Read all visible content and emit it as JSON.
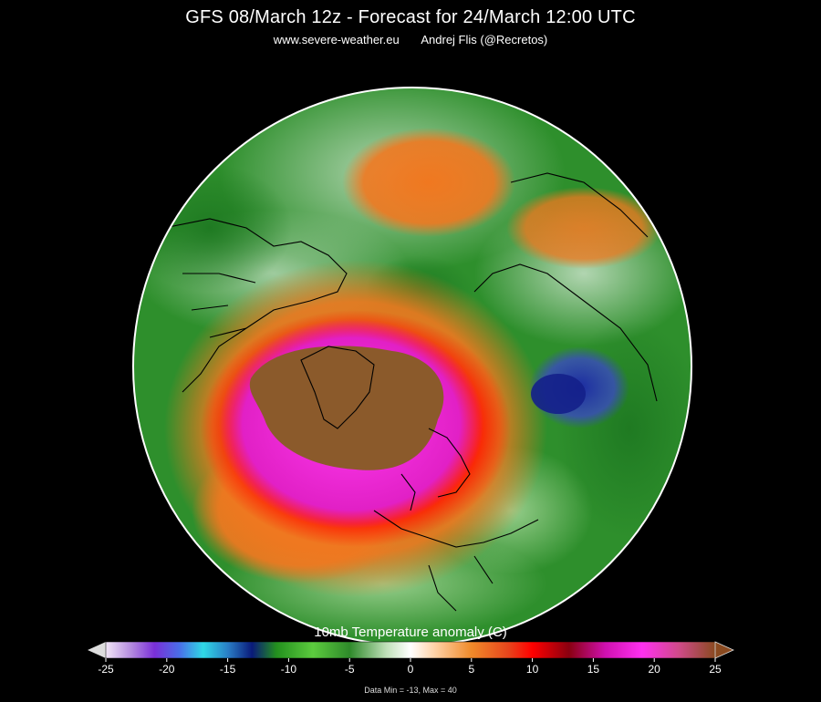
{
  "header": {
    "title": "GFS 08/March 12z  -  Forecast for 24/March 12:00 UTC",
    "site": "www.severe-weather.eu",
    "author": "Andrej Flis (@Recretos)"
  },
  "colorbar": {
    "title": "10mb Temperature anomaly (C)",
    "min": -25,
    "max": 25,
    "ticks": [
      "-25",
      "-20",
      "-15",
      "-10",
      "-5",
      "0",
      "5",
      "10",
      "15",
      "20",
      "25"
    ],
    "stops": [
      {
        "v": -25,
        "c": "#f2e6f7"
      },
      {
        "v": -23,
        "c": "#b78ee0"
      },
      {
        "v": -21,
        "c": "#7a2fd8"
      },
      {
        "v": -19,
        "c": "#4a6de8"
      },
      {
        "v": -17,
        "c": "#2fd9e6"
      },
      {
        "v": -15,
        "c": "#2a7fc6"
      },
      {
        "v": -13,
        "c": "#0a1a7a"
      },
      {
        "v": -11,
        "c": "#23901e"
      },
      {
        "v": -8,
        "c": "#5ccc3e"
      },
      {
        "v": -5,
        "c": "#2e8a2a"
      },
      {
        "v": -2,
        "c": "#bfe0b8"
      },
      {
        "v": 0,
        "c": "#ffffff"
      },
      {
        "v": 2,
        "c": "#ffd2a6"
      },
      {
        "v": 5,
        "c": "#f08a2a"
      },
      {
        "v": 8,
        "c": "#e8461c"
      },
      {
        "v": 10,
        "c": "#ff0000"
      },
      {
        "v": 13,
        "c": "#8a0010"
      },
      {
        "v": 16,
        "c": "#d010b0"
      },
      {
        "v": 19,
        "c": "#ff30f0"
      },
      {
        "v": 22,
        "c": "#d04a8a"
      },
      {
        "v": 25,
        "c": "#8a4a20"
      }
    ],
    "data_min_max": "Data Min = -13, Max = 40"
  },
  "colors": {
    "background": "#000000",
    "ocean_green": "#2f8f2a",
    "disc_edge": "#ffffff",
    "warm_core": "#8b5a2b",
    "magenta": "#ff28e6",
    "red": "#ff2200",
    "orange": "#f07820",
    "cold_blue": "#1a2a9a"
  }
}
